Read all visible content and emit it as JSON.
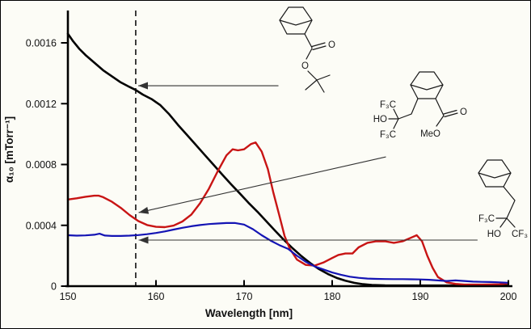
{
  "figure": {
    "background": "#fcfcf6",
    "axes": {
      "x_label": "Wavelength [nm]",
      "y_label": "α₁₀ [mTorr⁻¹]",
      "x_ticks": [
        "150",
        "160",
        "170",
        "180",
        "190",
        "200"
      ],
      "y_ticks": [
        "0",
        "0.0004",
        "0.0008",
        "0.0012",
        "0.0016"
      ]
    }
  },
  "chart_data": {
    "type": "line",
    "title": "",
    "xlabel": "Wavelength [nm]",
    "ylabel": "α₁₀ [mTorr⁻¹]",
    "xlim": [
      150,
      200
    ],
    "ylim": [
      0,
      0.0018
    ],
    "grid": false,
    "legend": "none — curves identified by chemical-structure drawings with arrows",
    "x_tick_values": [
      150,
      160,
      170,
      180,
      190,
      200
    ],
    "y_tick_values": [
      0,
      0.0004,
      0.0008,
      0.0012,
      0.0016
    ],
    "reference_line": {
      "type": "vertical-dashed",
      "x": 157.7
    },
    "series": [
      {
        "key": "black",
        "name": "norbornane tert-butyl ester (black curve)",
        "color": "#000000",
        "points": [
          [
            150,
            0.00166
          ],
          [
            150.6,
            0.00161
          ],
          [
            151.3,
            0.00156
          ],
          [
            152,
            0.00152
          ],
          [
            153,
            0.00147
          ],
          [
            154,
            0.00142
          ],
          [
            155,
            0.00138
          ],
          [
            156,
            0.00134
          ],
          [
            157,
            0.00131
          ],
          [
            157.7,
            0.00129
          ],
          [
            158.5,
            0.00126
          ],
          [
            159.5,
            0.00123
          ],
          [
            160.5,
            0.00119
          ],
          [
            161.5,
            0.00113
          ],
          [
            162.5,
            0.00106
          ],
          [
            163.5,
            0.000995
          ],
          [
            164.5,
            0.00093
          ],
          [
            165.5,
            0.000865
          ],
          [
            166.5,
            0.0008
          ],
          [
            167.5,
            0.000735
          ],
          [
            168.5,
            0.000672
          ],
          [
            169.5,
            0.00061
          ],
          [
            170.5,
            0.000548
          ],
          [
            171.5,
            0.00049
          ],
          [
            172.5,
            0.000428
          ],
          [
            173.5,
            0.000365
          ],
          [
            174.5,
            0.000305
          ],
          [
            175.5,
            0.00025
          ],
          [
            176.5,
            0.000198
          ],
          [
            177.5,
            0.000152
          ],
          [
            178.5,
            0.000112
          ],
          [
            179.5,
            8e-05
          ],
          [
            180.5,
            5.5e-05
          ],
          [
            181.5,
            3.6e-05
          ],
          [
            182.5,
            2.2e-05
          ],
          [
            183.5,
            1.3e-05
          ],
          [
            184.5,
            8e-06
          ],
          [
            186,
            5e-06
          ],
          [
            188,
            4e-06
          ],
          [
            192,
            4e-06
          ],
          [
            196,
            4e-06
          ],
          [
            200,
            4e-06
          ]
        ]
      },
      {
        "key": "red",
        "name": "norbornane hexafluoro-alcohol + methyl ester (red curve)",
        "color": "#c81414",
        "points": [
          [
            150,
            0.00057
          ],
          [
            151,
            0.000578
          ],
          [
            152,
            0.000588
          ],
          [
            153,
            0.000595
          ],
          [
            153.5,
            0.000595
          ],
          [
            154,
            0.000585
          ],
          [
            155,
            0.000555
          ],
          [
            156,
            0.000515
          ],
          [
            157,
            0.000468
          ],
          [
            158,
            0.000428
          ],
          [
            159,
            0.000402
          ],
          [
            160,
            0.00039
          ],
          [
            161,
            0.000388
          ],
          [
            162,
            0.000398
          ],
          [
            163,
            0.000425
          ],
          [
            164,
            0.00047
          ],
          [
            165,
            0.000545
          ],
          [
            166,
            0.00064
          ],
          [
            167,
            0.000755
          ],
          [
            168,
            0.00086
          ],
          [
            168.7,
            0.0009
          ],
          [
            169.3,
            0.000893
          ],
          [
            170,
            0.0009
          ],
          [
            170.8,
            0.000935
          ],
          [
            171.3,
            0.000945
          ],
          [
            172,
            0.000885
          ],
          [
            172.7,
            0.00077
          ],
          [
            173.3,
            0.00062
          ],
          [
            174,
            0.000465
          ],
          [
            174.6,
            0.00033
          ],
          [
            175.2,
            0.000245
          ],
          [
            176,
            0.000175
          ],
          [
            177,
            0.00014
          ],
          [
            178,
            0.000135
          ],
          [
            179,
            0.000155
          ],
          [
            180,
            0.000185
          ],
          [
            180.7,
            0.000205
          ],
          [
            181.5,
            0.000215
          ],
          [
            182.3,
            0.000215
          ],
          [
            183,
            0.000255
          ],
          [
            184,
            0.000285
          ],
          [
            185,
            0.000295
          ],
          [
            186,
            0.000295
          ],
          [
            187,
            0.000285
          ],
          [
            188,
            0.000295
          ],
          [
            189,
            0.00032
          ],
          [
            189.6,
            0.000335
          ],
          [
            190.2,
            0.000295
          ],
          [
            190.8,
            0.0002
          ],
          [
            191.4,
            0.00012
          ],
          [
            192,
            6e-05
          ],
          [
            193,
            2.5e-05
          ],
          [
            194,
            1.5e-05
          ],
          [
            195,
            1e-05
          ],
          [
            197,
            1e-05
          ],
          [
            199,
            1.2e-05
          ],
          [
            200,
            1.8e-05
          ]
        ]
      },
      {
        "key": "blue",
        "name": "norbornane hexafluoro-alcohol (blue curve)",
        "color": "#1414b4",
        "points": [
          [
            150,
            0.000335
          ],
          [
            151,
            0.000332
          ],
          [
            152,
            0.000334
          ],
          [
            153,
            0.000338
          ],
          [
            153.6,
            0.000345
          ],
          [
            154.2,
            0.000333
          ],
          [
            155,
            0.00033
          ],
          [
            156,
            0.00033
          ],
          [
            157,
            0.000332
          ],
          [
            158,
            0.000336
          ],
          [
            159,
            0.000342
          ],
          [
            160,
            0.00035
          ],
          [
            161,
            0.00036
          ],
          [
            162,
            0.000372
          ],
          [
            163,
            0.000384
          ],
          [
            164,
            0.000394
          ],
          [
            165,
            0.000402
          ],
          [
            166,
            0.000408
          ],
          [
            167,
            0.000412
          ],
          [
            168,
            0.000415
          ],
          [
            169,
            0.000415
          ],
          [
            170,
            0.000405
          ],
          [
            171,
            0.000375
          ],
          [
            172,
            0.000335
          ],
          [
            173,
            0.0003
          ],
          [
            174,
            0.00027
          ],
          [
            175,
            0.000245
          ],
          [
            176,
            0.0002
          ],
          [
            177,
            0.00016
          ],
          [
            178,
            0.00013
          ],
          [
            179,
            0.00011
          ],
          [
            180,
            9e-05
          ],
          [
            181,
            7.5e-05
          ],
          [
            182,
            6.2e-05
          ],
          [
            183,
            5.5e-05
          ],
          [
            184,
            5e-05
          ],
          [
            185,
            4.8e-05
          ],
          [
            186,
            4.7e-05
          ],
          [
            187,
            4.6e-05
          ],
          [
            188,
            4.6e-05
          ],
          [
            189,
            4.5e-05
          ],
          [
            190,
            4.4e-05
          ],
          [
            191,
            4.2e-05
          ],
          [
            192,
            3.8e-05
          ],
          [
            193,
            3.4e-05
          ],
          [
            194,
            3.8e-05
          ],
          [
            195,
            3.4e-05
          ],
          [
            196,
            3e-05
          ],
          [
            197,
            2.8e-05
          ],
          [
            198,
            2.7e-05
          ],
          [
            199,
            2.5e-05
          ],
          [
            200,
            2.2e-05
          ]
        ]
      }
    ],
    "annotations": [
      {
        "key": "black",
        "points_to": "black curve at dashed line",
        "tip": [
          157.8,
          0.001318
        ],
        "tail": [
          173.9,
          0.001318
        ]
      },
      {
        "key": "red",
        "points_to": "red curve dip at dashed line",
        "tip": [
          157.85,
          0.000484
        ],
        "tail": [
          186.1,
          0.00085
        ]
      },
      {
        "key": "blue",
        "points_to": "blue curve at dashed line",
        "tip": [
          157.85,
          0.000303
        ],
        "tail": [
          196.5,
          0.000303
        ]
      }
    ]
  },
  "structures": {
    "tbu_ester": {
      "description": "norbornane with C(=O)O-tert-butyl group",
      "labels": {
        "carbonyl_o": "O",
        "ester_o": "O"
      }
    },
    "hfa_ester": {
      "description": "norbornane with CH2-C(CF3)2-OH and C(=O)OMe groups",
      "labels": {
        "cf3_top": "F₃C",
        "ho": "HO",
        "cf3_bottom": "F₃C",
        "meo": "MeO",
        "carbonyl_o": "O"
      }
    },
    "hfa_alcohol": {
      "description": "norbornane with CH2-C(CF3)2-OH group",
      "labels": {
        "f3c": "F₃C",
        "ho": "HO",
        "cf3": "CF₃"
      }
    }
  }
}
